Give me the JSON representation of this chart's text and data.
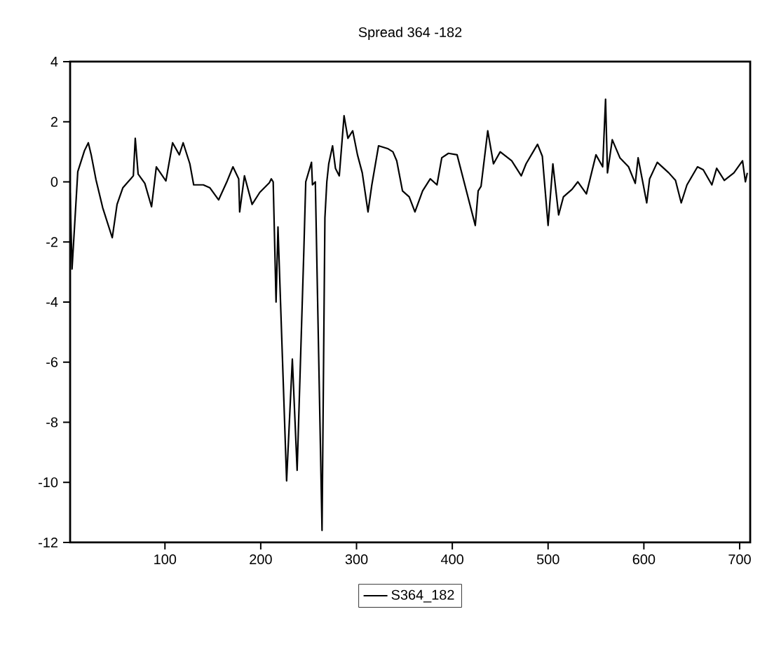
{
  "chart_data": {
    "type": "line",
    "title": "Spread 364 -182",
    "xlim": [
      1,
      711
    ],
    "ylim": [
      -12,
      4
    ],
    "xticks": [
      100,
      200,
      300,
      400,
      500,
      600,
      700
    ],
    "yticks": [
      -12,
      -10,
      -8,
      -6,
      -4,
      -2,
      0,
      2,
      4
    ],
    "grid": false,
    "legend": "bottom",
    "marker": "none",
    "line_style": "solid",
    "series": [
      {
        "name": "S364_182",
        "color": "#000000",
        "x": [
          1,
          3,
          9,
          16,
          20,
          23,
          28,
          35,
          45,
          50,
          56,
          67,
          69,
          72,
          79,
          86,
          91,
          101,
          108,
          115,
          119,
          126,
          130,
          140,
          147,
          156,
          165,
          171,
          177,
          178,
          183,
          191,
          199,
          209,
          211,
          213,
          216,
          218,
          227,
          233,
          238,
          245,
          247,
          253,
          254,
          257,
          264,
          267,
          269,
          271,
          275,
          278,
          282,
          287,
          291,
          296,
          301,
          306,
          312,
          316,
          323,
          333,
          338,
          342,
          348,
          355,
          361,
          369,
          377,
          384,
          389,
          396,
          405,
          424,
          427,
          430,
          437,
          443,
          450,
          462,
          472,
          477,
          489,
          494,
          500,
          505,
          511,
          516,
          525,
          531,
          540,
          550,
          557,
          560,
          562,
          567,
          575,
          584,
          591,
          594,
          603,
          606,
          614,
          626,
          633,
          639,
          645,
          656,
          662,
          671,
          676,
          684,
          694,
          703,
          706,
          708
        ],
        "values": [
          -0.36,
          -2.9,
          0.34,
          1.04,
          1.3,
          0.9,
          0.07,
          -0.86,
          -1.86,
          -0.75,
          -0.2,
          0.2,
          1.45,
          0.26,
          -0.05,
          -0.83,
          0.5,
          0.03,
          1.3,
          0.9,
          1.3,
          0.6,
          -0.1,
          -0.1,
          -0.2,
          -0.6,
          0.03,
          0.5,
          0.1,
          -1.0,
          0.2,
          -0.75,
          -0.35,
          -0.03,
          0.1,
          0.0,
          -4.0,
          -1.5,
          -9.95,
          -5.9,
          -9.6,
          -2.3,
          0.0,
          0.65,
          -0.1,
          0.0,
          -11.6,
          -1.2,
          0.0,
          0.6,
          1.2,
          0.45,
          0.2,
          2.2,
          1.45,
          1.7,
          0.9,
          0.3,
          -1.0,
          -0.1,
          1.2,
          1.1,
          1.0,
          0.7,
          -0.3,
          -0.5,
          -1.0,
          -0.3,
          0.1,
          -0.1,
          0.8,
          0.95,
          0.9,
          -1.45,
          -0.3,
          -0.15,
          1.7,
          0.6,
          1.0,
          0.7,
          0.2,
          0.6,
          1.25,
          0.85,
          -1.45,
          0.6,
          -1.1,
          -0.5,
          -0.25,
          0.0,
          -0.4,
          0.9,
          0.5,
          2.75,
          0.3,
          1.4,
          0.8,
          0.5,
          -0.05,
          0.8,
          -0.7,
          0.1,
          0.65,
          0.3,
          0.05,
          -0.7,
          -0.1,
          0.5,
          0.4,
          -0.1,
          0.45,
          0.05,
          0.3,
          0.7,
          0.0,
          0.3
        ]
      }
    ]
  }
}
